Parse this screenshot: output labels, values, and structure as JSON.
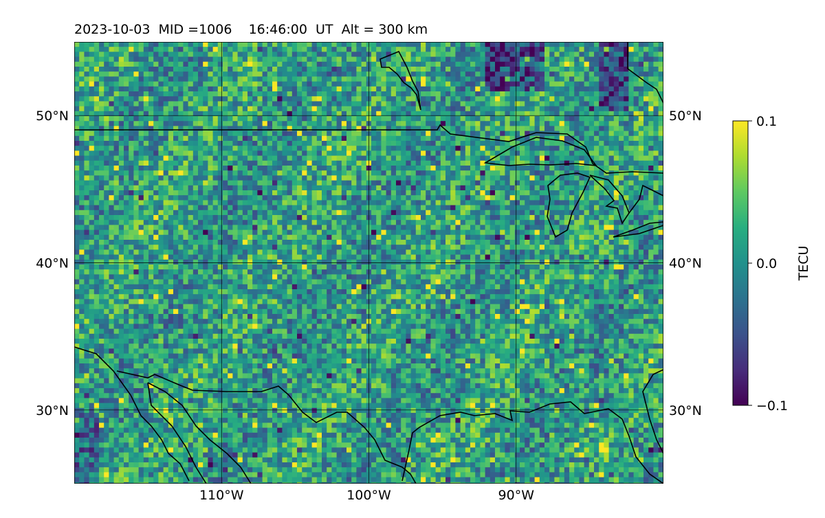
{
  "title": "2023-10-03  MID =1006    16:46:00  UT  Alt = 300 km",
  "colorbar": {
    "label": "TECU",
    "ticks": [
      {
        "value": 0.1,
        "label": "0.1"
      },
      {
        "value": 0.0,
        "label": "0.0"
      },
      {
        "value": -0.1,
        "label": "−0.1"
      }
    ],
    "range": [
      -0.1,
      0.1
    ],
    "colormap": "viridis"
  },
  "map": {
    "lon_range": [
      -120,
      -80
    ],
    "lat_range": [
      25,
      55
    ],
    "lat_ticks": [
      {
        "value": 50,
        "label": "50°N"
      },
      {
        "value": 40,
        "label": "40°N"
      },
      {
        "value": 30,
        "label": "30°N"
      }
    ],
    "lon_ticks": [
      {
        "value": -110,
        "label": "110°W"
      },
      {
        "value": -100,
        "label": "100°W"
      },
      {
        "value": -90,
        "label": "90°W"
      }
    ],
    "gridlines": true,
    "coastlines": true
  },
  "chart_data": {
    "type": "heatmap",
    "title": "2023-10-03  MID =1006    16:46:00  UT  Alt = 300 km",
    "zlabel": "TECU",
    "zlim": [
      -0.1,
      0.1
    ],
    "xlim": [
      -120,
      -80
    ],
    "ylim": [
      25,
      55
    ],
    "grid": true,
    "legend": "colorbar-right"
  }
}
